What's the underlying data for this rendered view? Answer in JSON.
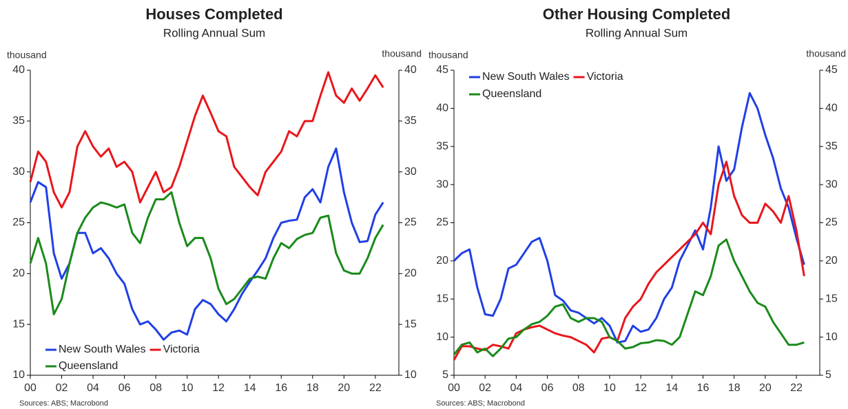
{
  "chart_data": [
    {
      "type": "line",
      "title": "Houses Completed",
      "subtitle": "Rolling Annual Sum",
      "y_label": "thousand",
      "y2_label": "thousand",
      "source": "Sources: ABS; Macrobond",
      "legend": "lower left",
      "x": [
        2000,
        2000.5,
        2001,
        2001.5,
        2002,
        2002.5,
        2003,
        2003.5,
        2004,
        2004.5,
        2005,
        2005.5,
        2006,
        2006.5,
        2007,
        2007.5,
        2008,
        2008.5,
        2009,
        2009.5,
        2010,
        2010.5,
        2011,
        2011.5,
        2012,
        2012.5,
        2013,
        2013.5,
        2014,
        2014.5,
        2015,
        2015.5,
        2016,
        2016.5,
        2017,
        2017.5,
        2018,
        2018.5,
        2019,
        2019.5,
        2020,
        2020.5,
        2021,
        2021.5,
        2022,
        2022.5
      ],
      "xlim": [
        2000,
        2023.5
      ],
      "xticks": [
        {
          "value": 2000,
          "label": "00"
        },
        {
          "value": 2002,
          "label": "02"
        },
        {
          "value": 2004,
          "label": "04"
        },
        {
          "value": 2006,
          "label": "06"
        },
        {
          "value": 2008,
          "label": "08"
        },
        {
          "value": 2010,
          "label": "10"
        },
        {
          "value": 2012,
          "label": "12"
        },
        {
          "value": 2014,
          "label": "14"
        },
        {
          "value": 2016,
          "label": "16"
        },
        {
          "value": 2018,
          "label": "18"
        },
        {
          "value": 2020,
          "label": "20"
        },
        {
          "value": 2022,
          "label": "22"
        }
      ],
      "ylim": [
        10,
        40
      ],
      "yticks": [
        10,
        15,
        20,
        25,
        30,
        35,
        40
      ],
      "y2lim": [
        10,
        40
      ],
      "y2ticks": [
        10,
        15,
        20,
        25,
        30,
        35,
        40
      ],
      "series": [
        {
          "name": "New South Wales",
          "color": "#1f3fe6",
          "values": [
            27,
            29,
            28.5,
            22,
            19.5,
            21,
            24,
            24,
            22,
            22.5,
            21.5,
            20,
            19,
            16.5,
            15,
            15.3,
            14.5,
            13.5,
            14.2,
            14.4,
            14,
            16.5,
            17.4,
            17,
            16,
            15.3,
            16.5,
            18,
            19.2,
            20.3,
            21.5,
            23.5,
            25,
            25.2,
            25.3,
            27.5,
            28.3,
            27,
            30.5,
            32.3,
            28,
            25,
            23.1,
            23.2,
            25.8,
            27
          ]
        },
        {
          "name": "Victoria",
          "color": "#e8161b",
          "values": [
            29,
            32,
            31,
            28,
            26.5,
            28,
            32.5,
            34,
            32.5,
            31.5,
            32.3,
            30.5,
            31,
            30,
            27,
            28.5,
            30,
            28,
            28.5,
            30.5,
            33,
            35.5,
            37.5,
            35.8,
            34,
            33.5,
            30.5,
            29.5,
            28.5,
            27.7,
            30,
            31,
            32,
            34,
            33.5,
            35,
            35,
            37.5,
            39.8,
            37.5,
            36.8,
            38.2,
            37,
            38.2,
            39.5,
            38.3
          ]
        },
        {
          "name": "Queensland",
          "color": "#1a8a1a",
          "values": [
            21,
            23.5,
            21,
            16,
            17.5,
            21,
            24,
            25.5,
            26.5,
            27,
            26.8,
            26.5,
            26.8,
            24,
            23,
            25.5,
            27.3,
            27.3,
            28,
            25,
            22.7,
            23.5,
            23.5,
            21.5,
            18.5,
            17,
            17.5,
            18.5,
            19.5,
            19.7,
            19.5,
            21.5,
            23,
            22.5,
            23.4,
            23.8,
            24,
            25.5,
            25.7,
            22,
            20.3,
            20,
            20,
            21.5,
            23.5,
            24.8
          ]
        }
      ]
    },
    {
      "type": "line",
      "title": "Other Housing Completed",
      "subtitle": "Rolling Annual Sum",
      "y_label": "thousand",
      "y2_label": "thousand",
      "source": "Sources: ABS; Macrobond",
      "legend": "upper left",
      "x": [
        2000,
        2000.5,
        2001,
        2001.5,
        2002,
        2002.5,
        2003,
        2003.5,
        2004,
        2004.5,
        2005,
        2005.5,
        2006,
        2006.5,
        2007,
        2007.5,
        2008,
        2008.5,
        2009,
        2009.5,
        2010,
        2010.5,
        2011,
        2011.5,
        2012,
        2012.5,
        2013,
        2013.5,
        2014,
        2014.5,
        2015,
        2015.5,
        2016,
        2016.5,
        2017,
        2017.5,
        2018,
        2018.5,
        2019,
        2019.5,
        2020,
        2020.5,
        2021,
        2021.5,
        2022,
        2022.5
      ],
      "xlim": [
        2000,
        2023.5
      ],
      "xticks": [
        {
          "value": 2000,
          "label": "00"
        },
        {
          "value": 2002,
          "label": "02"
        },
        {
          "value": 2004,
          "label": "04"
        },
        {
          "value": 2006,
          "label": "06"
        },
        {
          "value": 2008,
          "label": "08"
        },
        {
          "value": 2010,
          "label": "10"
        },
        {
          "value": 2012,
          "label": "12"
        },
        {
          "value": 2014,
          "label": "14"
        },
        {
          "value": 2016,
          "label": "16"
        },
        {
          "value": 2018,
          "label": "18"
        },
        {
          "value": 2020,
          "label": "20"
        },
        {
          "value": 2022,
          "label": "22"
        }
      ],
      "ylim": [
        5,
        45
      ],
      "yticks": [
        5,
        10,
        15,
        20,
        25,
        30,
        35,
        40,
        45
      ],
      "y2lim": [
        5,
        45
      ],
      "y2ticks": [
        5,
        10,
        15,
        20,
        25,
        30,
        35,
        40,
        45
      ],
      "series": [
        {
          "name": "New South Wales",
          "color": "#1f3fe6",
          "values": [
            20,
            21,
            21.5,
            16.5,
            13,
            12.8,
            15,
            19,
            19.5,
            21,
            22.5,
            23,
            20,
            15.5,
            14.8,
            13.5,
            13.2,
            12.5,
            11.8,
            12.5,
            11.5,
            9.3,
            9.5,
            11.5,
            10.7,
            11,
            12.5,
            15,
            16.5,
            20,
            22,
            24,
            21.5,
            27,
            35,
            30.5,
            32,
            37.5,
            42,
            40,
            36.5,
            33.5,
            29.5,
            27,
            23,
            19.5
          ]
        },
        {
          "name": "Victoria",
          "color": "#e8161b",
          "values": [
            7,
            8.8,
            8.8,
            8.5,
            8.3,
            9,
            8.8,
            8.5,
            10.5,
            11,
            11.3,
            11.5,
            11,
            10.5,
            10.2,
            10,
            9.5,
            9,
            8,
            9.8,
            10,
            9.5,
            12.5,
            14,
            15,
            17,
            18.5,
            19.5,
            20.5,
            21.5,
            22.5,
            23.5,
            25,
            23.5,
            30,
            33,
            28.5,
            26,
            25,
            25,
            27.5,
            26.5,
            25,
            28.5,
            24,
            18
          ]
        },
        {
          "name": "Queensland",
          "color": "#1a8a1a",
          "values": [
            7.7,
            9,
            9.3,
            8,
            8.5,
            7.5,
            8.5,
            9.8,
            10,
            11,
            11.7,
            12,
            12.8,
            14,
            14.3,
            12.5,
            12,
            12.5,
            12.5,
            12,
            10,
            9.5,
            8.5,
            8.7,
            9.2,
            9.3,
            9.6,
            9.5,
            9,
            10,
            13,
            16,
            15.5,
            18,
            22,
            22.8,
            20,
            18,
            16,
            14.5,
            14,
            12,
            10.5,
            9,
            9,
            9.3
          ]
        }
      ]
    }
  ]
}
